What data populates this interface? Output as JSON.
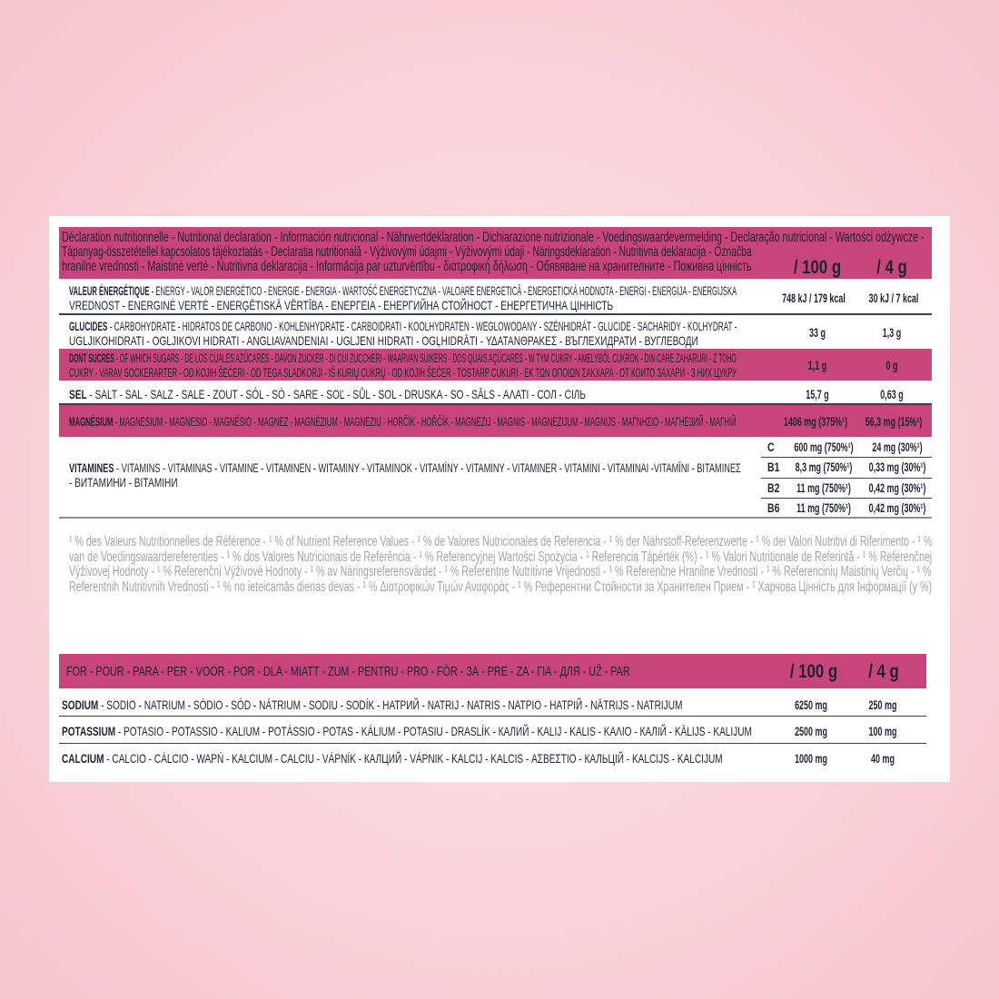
{
  "colors": {
    "accent": "#c7457b",
    "text": "#1f2233",
    "footnote": "#a4a4aa",
    "background": "#f9cdd5"
  },
  "table1": {
    "header_lines": [
      "Déclaration nutritionnelle - Nutritional declaration - Información nutricional - Nährwertdeklaration - Dichiarazione nutrizionale - Voedingswaardevermelding - Declaração nutricional - Wartości odżywcze -",
      "Tápanyag-összetétellel kapcsolatos tájékoztatás - Declaratia nutritională - Výživovými údajmi - Výživovými údaji - Näringsdeklaration - Nutritivna deklaracija - Označba",
      "hranilne vrednosti - Maistinė vertė - Nutritivna deklaracija - Informācija par uzturvērtību - διατροφική δήλωση - Обявяване на хранителните - Поживна цінність"
    ],
    "col1": "/ 100 g",
    "col2": "/ 4 g",
    "rows": {
      "energy": {
        "label": "VALEUR ÉNERGÉTIQUE",
        "line1": " - ENERGY - VALOR ENERGÉTICO - ENERGIE - ENERGIA - WARTOŚĆ ENERGETYCZNA - VALOARE ENERGETICĂ - ENERGETICKÁ HODNOTA - ENERGI - ENERGIJA - ENERGIJSKA",
        "line2": "VREDNOST - ENERGINĖ VERTĖ - ENERĢĒTISKĀ VĒRTĪBA - ΕΝΕΡΓΕΙΑ - ЕНЕРГИЙНА СТОЙНОСТ - ЕНЕРГЕТИЧНА ЦІННІСТЬ",
        "per100": "748 kJ / 179 kcal",
        "per4": "30 kJ / 7 kcal"
      },
      "carbs": {
        "label": "GLUCIDES",
        "line1": " - CARBOHYDRATE - HIDRATOS DE CARBONO - KOHLENHYDRATE - CARBOIDRATI - KOOLHYDRATEN - WEGLOWODANY - SZÉNHIDRÁT - GLUCIDE - SACHARIDY - KOLHYDRAT -",
        "line2": "UGLJIKOHIDRATI - OGLJIKOVI HIDRATI - ANGLIAVANDENIAI - UGLJENI HIDRATI - OGĻHIDRĀTI - ΥΔΑΤΑΝΘΡΑΚΕΣ - ВЪГЛЕХИДРАТИ - ВУГЛЕВОДИ",
        "per100": "33 g",
        "per4": "1,3 g"
      },
      "sugars": {
        "label": "DONT SUCRES",
        "line1": " - OF WHICH SUGARS - DE LOS CUALES AZÚCARES - DAVON ZUCKER - DI CUI ZUCCHERI - WAARVAN SUIKERS - DOS QUAIS AÇÚCARES - W TYM CUKRY - AMELYBŐL CUKROK - DIN CARE ZAHARURI - Z TOHO",
        "line2": "CUKRY - VARAV SOCKERARTER - OD KOJIH ŠEĆERI - OD TEGA SLADKORJI - IŠ KURIŲ CUKRŲ - OD KOJIH ŠEĆER - TOSTARP CUKURI - ΕΚ ΤΩΝ ΟΠΟΙΩΝ ΣΑΚΧΑΡΑ - ОТ КОИТО ЗАХАРИ - З НИХ ЦУКРУ",
        "per100": "1,1 g",
        "per4": "0 g"
      },
      "salt": {
        "label": "SEL",
        "line1": " - SALT - SAL - SALZ - SALE - ZOUT - SÓL - SÓ - SARE - SOĽ - SŮL - SOL - DRUSKA - SO - SĀLS - ΑΛΑΤΙ - СОЛ - СІЛЬ",
        "per100": "15,7 g",
        "per4": "0,63 g"
      },
      "magnesium": {
        "label": "MAGNÉSIUM",
        "line1": " - MAGNESIUM - MAGNESIO - MAGNÉSIO - MAGNEZ - MAGNÉZIUM - MAGNEZIU - HORČÍK - HOŘČÍK - MAGNEZIJ - MAGNIS - MAGNEZIJUM - MAGNIJS - ΜΑΓΝΗΣΙΟ - МАГНЕЗИЙ - МАГНІЙ",
        "per100": "1406 mg (375%¹)",
        "per4": "56,3 mg (15%¹)"
      },
      "vitamins": {
        "label": "VITAMINES",
        "line1": " - VITAMINS - VITAMINAS - VITAMINE - VITAMINEN - WITAMINY - VITAMINOK - VITAMÍNY - VITAMINY - VITAMINER - VITAMINI - VITAMINAI -VITAMĪNI - ΒΙΤΑΜΙΝΕΣ",
        "line2": "- ВИТАМИНИ - ВІТАМІНИ",
        "items": [
          {
            "name": "C",
            "per100": "600 mg (750%¹)",
            "per4": "24 mg (30%¹)"
          },
          {
            "name": "B1",
            "per100": "8,3 mg (750%¹)",
            "per4": "0,33 mg (30%¹)"
          },
          {
            "name": "B2",
            "per100": "11 mg (750%¹)",
            "per4": "0,42 mg (30%¹)"
          },
          {
            "name": "B6",
            "per100": "11 mg (750%¹)",
            "per4": "0,42 mg (30%¹)"
          }
        ]
      }
    }
  },
  "footnote_lines": [
    "¹ % des Valeurs Nutritionnelles de Référence - ¹ % of Nutrient Reference Values - ¹ % de Valores Nutricionales de Referencia - ¹ % der Nährstoff-Referenzwerte - ¹ % dei Valori Nutritivi di Riferimento - ¹ %",
    "van de Voedingswaardereferenties - ¹ % dos Valores Nutricionais de Referência - ¹ % Referencyjnej Wartości Spożycia - ¹ Referencia Tápérték (%) - ¹ % Valori Nutritionale de Referintă - ¹ % Referenčnej",
    "Výživovej Hodnoty - ¹ % Referenční Výživové Hodnoty - ¹ % av Näringsreferensvärdet - ¹ % Referentne Nutritivne Vrijednosti - ¹ % Referenčne Hranilne Vrednosti - ¹ % Referencinių Maistinių Verčių - ¹ %",
    "Referentnih Nutritivnih Vrednosti - ¹ % no ieteicamās dienas devas - ¹ % Διατροφικών Τιμών Αναφοράς - ¹ % Референтни Стойности за Хранителен Прием - ¹ Харчова Цінність для Інформації (у %)"
  ],
  "table2": {
    "header": "FOR - POUR - PARA - PER - VOOR - POR - DLA - MIATT - ZUM - PENTRU - PRO - FÖR - ЗА - PRE - ZA - ΓΙΑ - ДЛЯ - UŽ - PAR",
    "col1": "/ 100 g",
    "col2": "/ 4 g",
    "rows": [
      {
        "label": "SODIUM",
        "text": " - SODIO - NATRIUM - SÓDIO - SÓD - NÁTRIUM - SODIU - SODÍK - НАТРИЙ - NATRIJ - NATRIS - ΝΑΤΡΙΟ - НАТРІЙ - NĀTRIJS - NATRIJUM",
        "per100": "6250 mg",
        "per4": "250 mg"
      },
      {
        "label": "POTASSIUM",
        "text": " - POTASIO - POTASSIO - KALIUM - POTÁSSIO - POTAS - KÁLIUM - POTASIU - DRASLÍK - КАЛИЙ - KALIJ - KALIS - ΚΑΛΙΟ - КАЛІЙ - KĀLIJS - KALIJUM",
        "per100": "2500 mg",
        "per4": "100 mg"
      },
      {
        "label": "CALCIUM",
        "text": " - CALCIO - CÁLCIO - WAPŃ - KALCIUM - CALCIU - VÁPNÍK - КАЛЦИЙ - VÁPNIK - KALCIJ - KALCIS - ΑΣΒΕΣΤΙΟ - КАЛЬЦІЙ - KALCIJS - KALCIJUM",
        "per100": "1000 mg",
        "per4": "40 mg"
      }
    ]
  }
}
